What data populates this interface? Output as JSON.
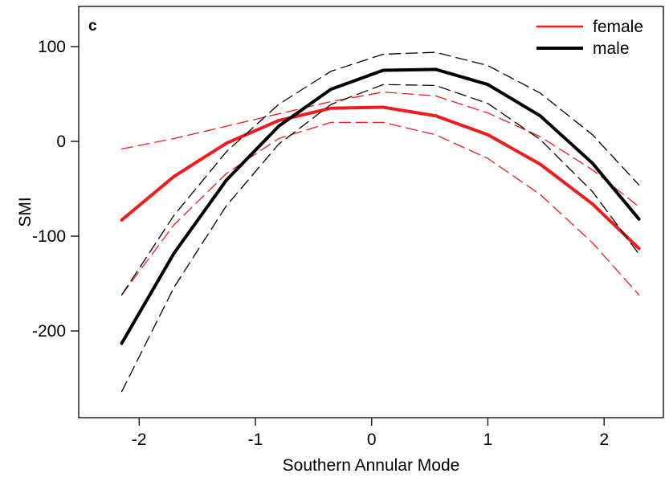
{
  "chart_data": {
    "type": "line",
    "panel_label": "c",
    "x_label": "Southern Annular Mode",
    "y_label": "SMI",
    "x": [
      -2.15,
      -1.7,
      -1.25,
      -0.8,
      -0.35,
      0.1,
      0.55,
      1.0,
      1.45,
      1.9,
      2.3
    ],
    "series": [
      {
        "name": "female",
        "color": "#ee1c1c",
        "values": [
          -83,
          -37,
          -2,
          22,
          35,
          36,
          27,
          7,
          -24,
          -66,
          -113
        ],
        "upper": [
          -8,
          3,
          16,
          29,
          42,
          52,
          48,
          30,
          5,
          -30,
          -69
        ],
        "lower": [
          -162,
          -88,
          -34,
          3,
          20,
          20,
          7,
          -18,
          -56,
          -107,
          -162
        ]
      },
      {
        "name": "male",
        "color": "#000000",
        "values": [
          -213,
          -118,
          -41,
          16,
          55,
          75,
          76,
          60,
          27,
          -23,
          -82
        ],
        "upper": [
          -162,
          -78,
          -11,
          39,
          74,
          92,
          94,
          80,
          51,
          7,
          -46
        ],
        "lower": [
          -264,
          -154,
          -68,
          -3,
          39,
          60,
          59,
          40,
          2,
          -53,
          -119
        ]
      }
    ],
    "xlim": [
      -2.52,
      2.51
    ],
    "ylim": [
      -291.5,
      142.4
    ],
    "xticks": [
      -2,
      -1,
      0,
      1,
      2
    ],
    "yticks": [
      -200,
      -100,
      0,
      100
    ],
    "legend": "top-right"
  }
}
